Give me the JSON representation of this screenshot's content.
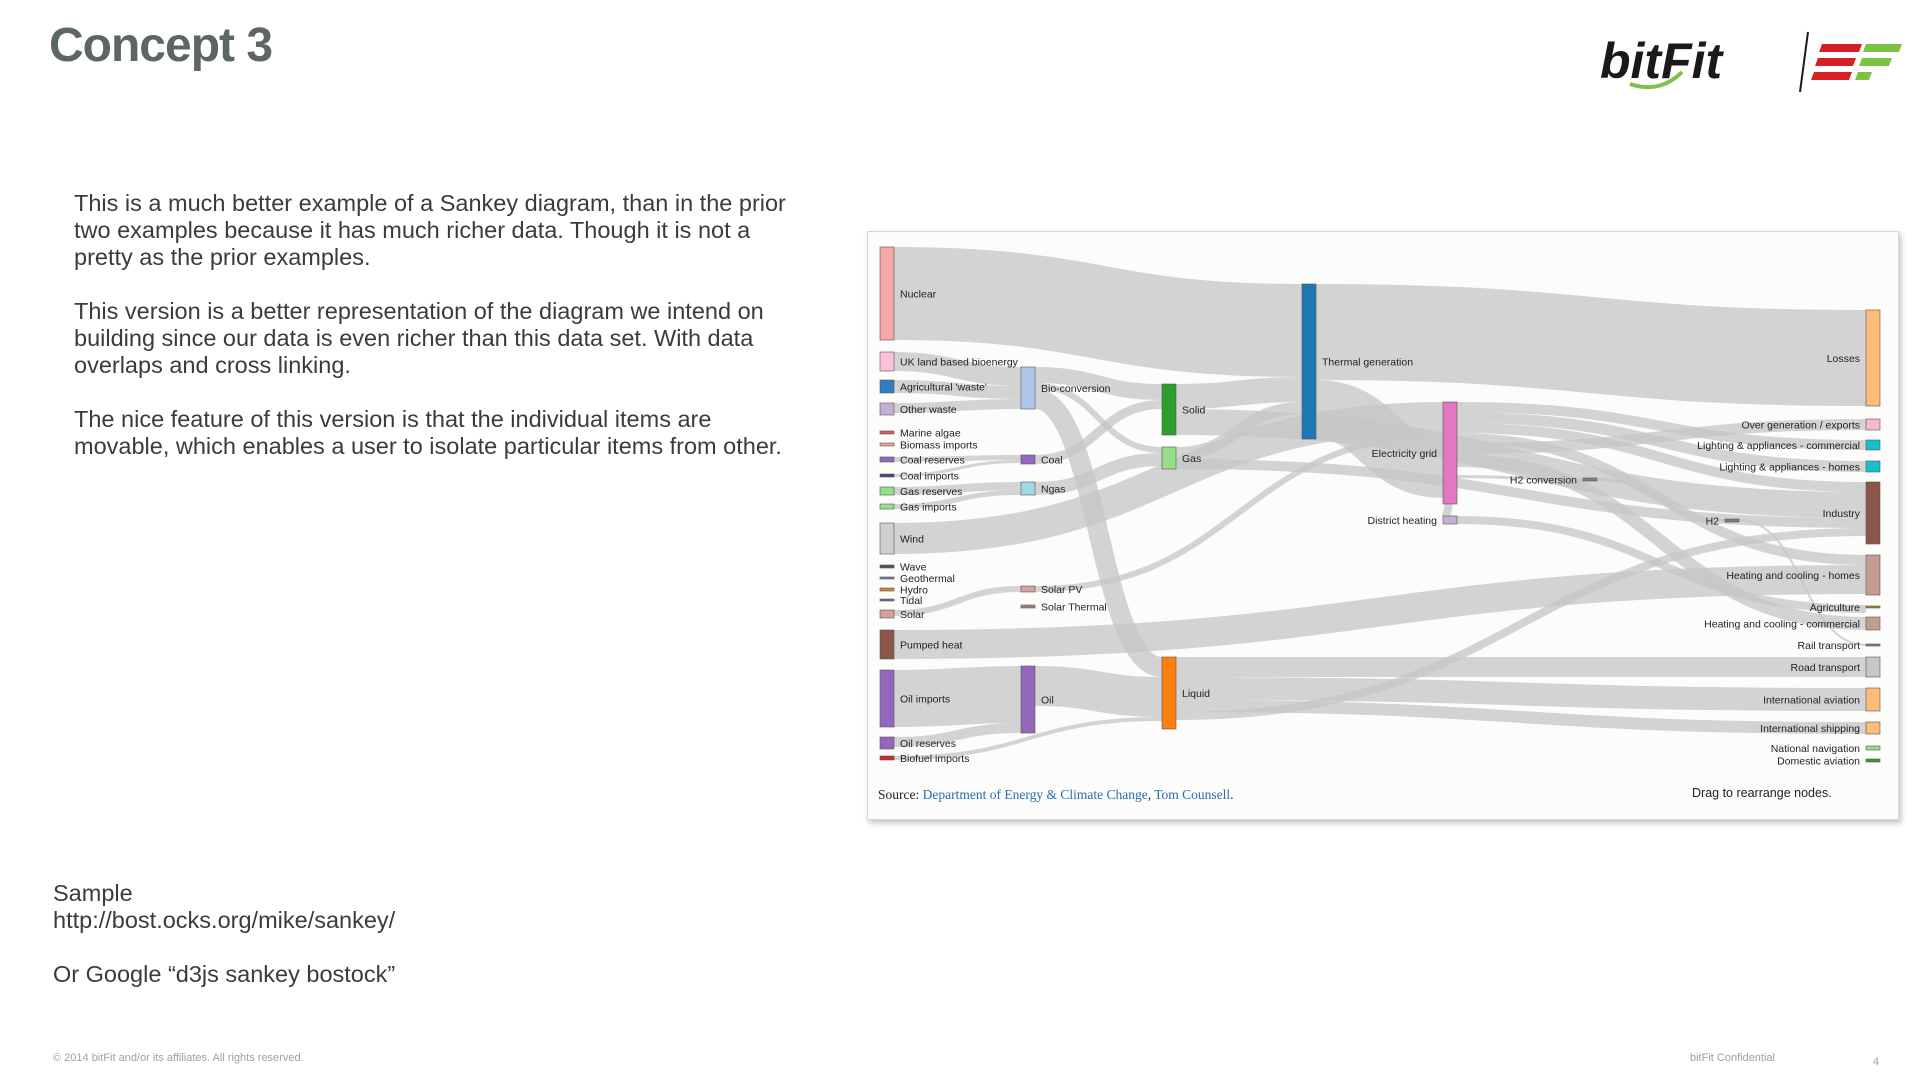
{
  "slide": {
    "title": "Concept 3",
    "paragraphs": [
      "This is a much better example of a Sankey diagram, than in the prior two examples because it has much richer data. Though it is not a pretty as the prior examples.",
      "This version is a better representation of the diagram we intend on building since our data is even richer than this data set. With data overlaps and cross linking.",
      "The nice feature of this version is that the individual items are movable, which enables a user to isolate particular items from other."
    ],
    "sample_label": "Sample",
    "sample_url": "http://bost.ocks.org/mike/sankey/",
    "sample_google": "Or Google “d3js sankey bostock”",
    "footer_copyright": "© 2014 bitFit and/or its affiliates. All rights reserved.",
    "footer_confidential": "bitFit Confidential",
    "page_number": "4"
  },
  "logo": {
    "wordmark": "bitFit",
    "icon": "ef-stripes-logo-icon",
    "colors": {
      "black": "#1a1a1a",
      "green": "#7dc242",
      "red": "#d62027"
    }
  },
  "sankey": {
    "source_prefix": "Source:",
    "source_link_1": "Department of Energy & Climate Change",
    "source_sep": ",",
    "source_link_2": "Tom Counsell",
    "source_end": ".",
    "drag_hint": "Drag to rearrange nodes.",
    "link_color": "#c6c6c6",
    "nodes": [
      {
        "label": "Nuclear",
        "color": "#f7a8a8"
      },
      {
        "label": "UK land based bioenergy",
        "color": "#f9c2d8"
      },
      {
        "label": "Agricultural 'waste'",
        "color": "#2f7fc1"
      },
      {
        "label": "Other waste",
        "color": "#c5b0d5"
      },
      {
        "label": "Marine algae",
        "color": "#e05a5a"
      },
      {
        "label": "Biomass imports",
        "color": "#f0a0a0"
      },
      {
        "label": "Coal reserves",
        "color": "#9467bd"
      },
      {
        "label": "Coal imports",
        "color": "#5a3c8c"
      },
      {
        "label": "Gas reserves",
        "color": "#98df8a"
      },
      {
        "label": "Gas imports",
        "color": "#98df8a"
      },
      {
        "label": "Wind",
        "color": "#cfcfcf"
      },
      {
        "label": "Wave",
        "color": "#555555"
      },
      {
        "label": "Geothermal",
        "color": "#6b7fb0"
      },
      {
        "label": "Hydro",
        "color": "#d08a30"
      },
      {
        "label": "Tidal",
        "color": "#7a5fa0"
      },
      {
        "label": "Solar",
        "color": "#d4a0a0"
      },
      {
        "label": "Pumped heat",
        "color": "#8c564b"
      },
      {
        "label": "Oil imports",
        "color": "#9467bd"
      },
      {
        "label": "Oil reserves",
        "color": "#9467bd"
      },
      {
        "label": "Biofuel imports",
        "color": "#d62728"
      },
      {
        "label": "Bio-conversion",
        "color": "#aec7e8"
      },
      {
        "label": "Coal",
        "color": "#9467bd"
      },
      {
        "label": "Ngas",
        "color": "#9edae5"
      },
      {
        "label": "Solar PV",
        "color": "#d4a0a0"
      },
      {
        "label": "Solar Thermal",
        "color": "#a08080"
      },
      {
        "label": "Oil",
        "color": "#9467bd"
      },
      {
        "label": "Solid",
        "color": "#2ca02c"
      },
      {
        "label": "Gas",
        "color": "#98df8a"
      },
      {
        "label": "Liquid",
        "color": "#ff7f0e"
      },
      {
        "label": "Thermal generation",
        "color": "#1f77b4"
      },
      {
        "label": "Electricity grid",
        "color": "#e377c2"
      },
      {
        "label": "District heating",
        "color": "#c5b0d5"
      },
      {
        "label": "H2 conversion",
        "color": "#7f7f7f"
      },
      {
        "label": "H2",
        "color": "#7f7f7f"
      },
      {
        "label": "Losses",
        "color": "#ffbb78"
      },
      {
        "label": "Over generation / exports",
        "color": "#f7b6d2"
      },
      {
        "label": "Lighting & appliances - commercial",
        "color": "#17becf"
      },
      {
        "label": "Lighting & appliances - homes",
        "color": "#17becf"
      },
      {
        "label": "Industry",
        "color": "#8c564b"
      },
      {
        "label": "Heating and cooling - homes",
        "color": "#c49c94"
      },
      {
        "label": "Agriculture",
        "color": "#8c8c2c"
      },
      {
        "label": "Heating and cooling - commercial",
        "color": "#c49c94"
      },
      {
        "label": "Rail transport",
        "color": "#7f7f7f"
      },
      {
        "label": "Road transport",
        "color": "#c7c7c7"
      },
      {
        "label": "International aviation",
        "color": "#ffbb78"
      },
      {
        "label": "International shipping",
        "color": "#ffbb78"
      },
      {
        "label": "National navigation",
        "color": "#98df8a"
      },
      {
        "label": "Domestic aviation",
        "color": "#2ca02c"
      }
    ]
  }
}
